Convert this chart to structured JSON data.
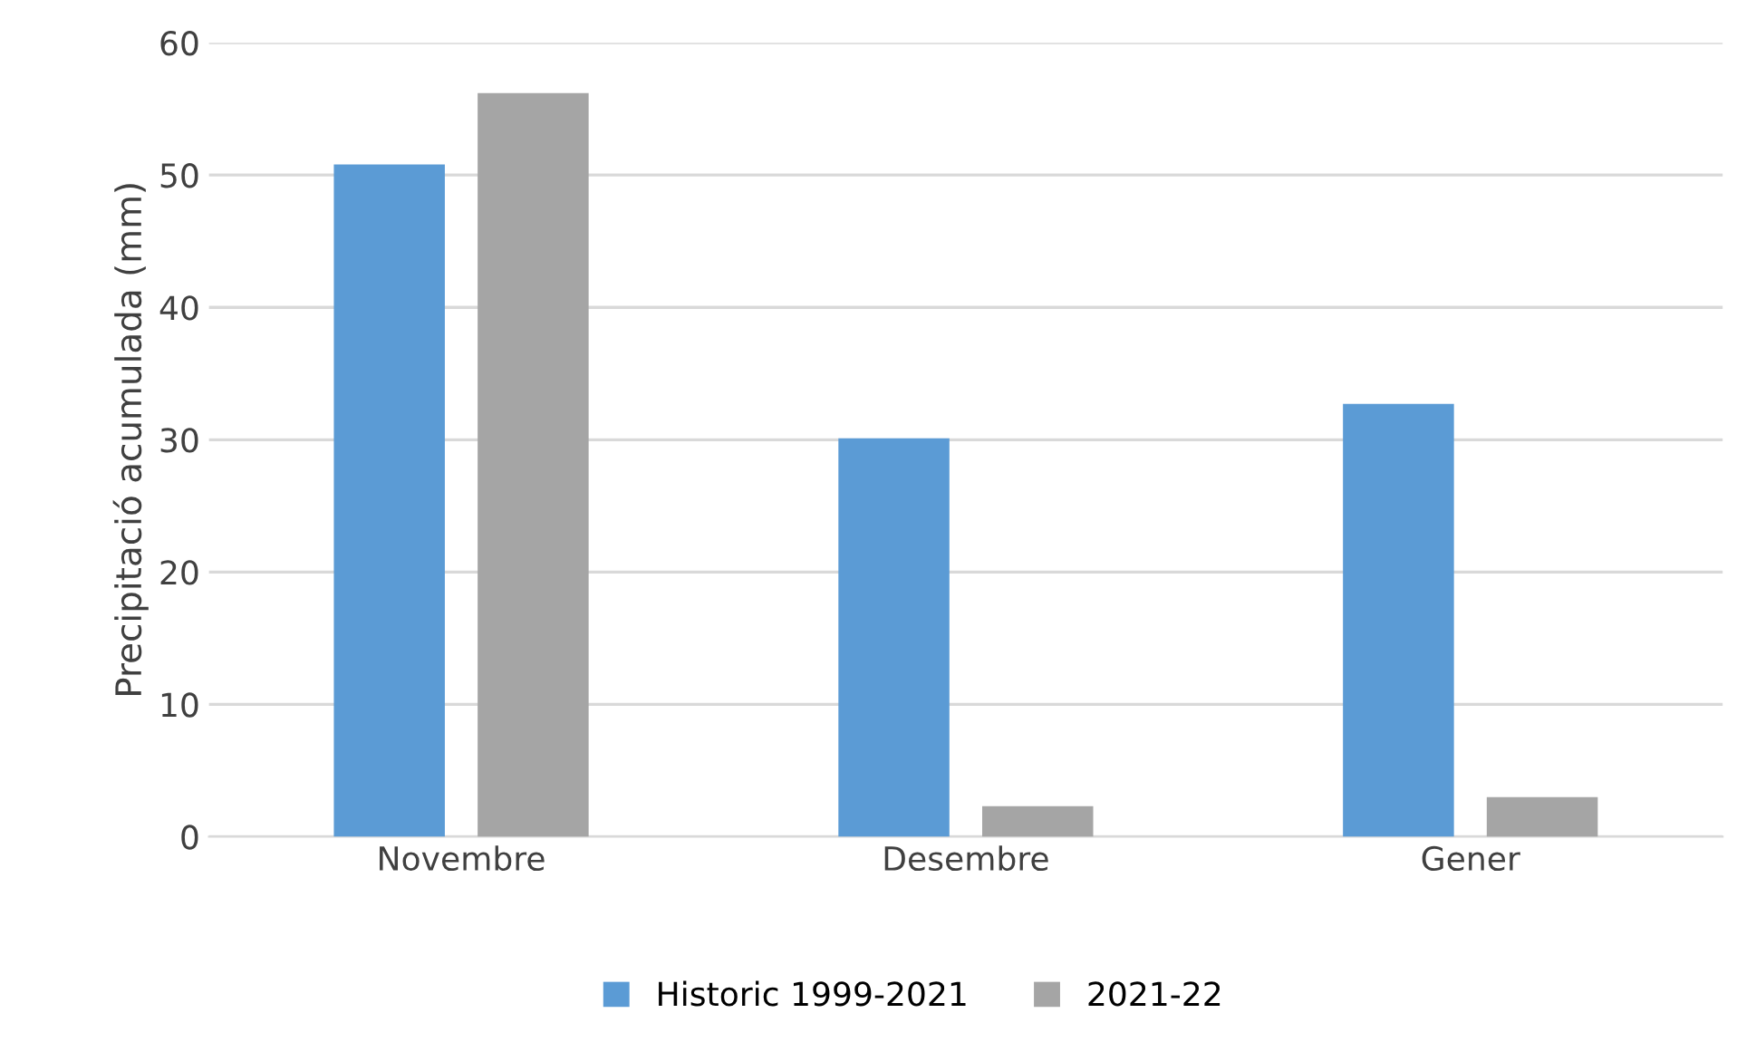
{
  "chart_data": {
    "type": "bar",
    "ylabel": "Precipitació acumulada (mm)",
    "categories": [
      "Novembre",
      "Desembre",
      "Gener"
    ],
    "series": [
      {
        "name": "Historic 1999-2021",
        "color": "#5b9bd5",
        "values": [
          50.8,
          30.1,
          32.7
        ]
      },
      {
        "name": "2021-22",
        "color": "#a5a5a5",
        "values": [
          56.2,
          2.3,
          3.0
        ]
      }
    ],
    "ylim": [
      0,
      60
    ],
    "yticks": [
      0,
      10,
      20,
      30,
      40,
      50,
      60
    ],
    "grid": "y",
    "legend": "bottom"
  }
}
